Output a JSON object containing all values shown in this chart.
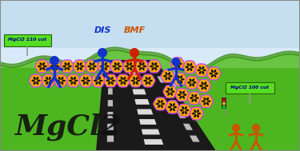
{
  "sky_top": "#c5dff0",
  "sky_bottom": "#d8eaf8",
  "grass_bright": "#4db520",
  "grass_mid": "#3a9a18",
  "grass_dark": "#2a7a10",
  "road_color": "#1a1a1a",
  "mgcl2_text": "MgCl2",
  "label_DIS": "DIS",
  "label_BMF": "BMF",
  "label_sign1": "MgCl2 110 cut",
  "label_sign2": "MgCl2 100 cut",
  "sign_color": "#55dd22",
  "sign_border": "#226600",
  "blue_color": "#1133cc",
  "red_color": "#cc2200",
  "orange_color": "#cc5500",
  "lattice_outline": "#cc44ee",
  "lattice_fill": "#ffaa00",
  "lattice_dark": "#111111",
  "lattice_dark2": "#221100"
}
